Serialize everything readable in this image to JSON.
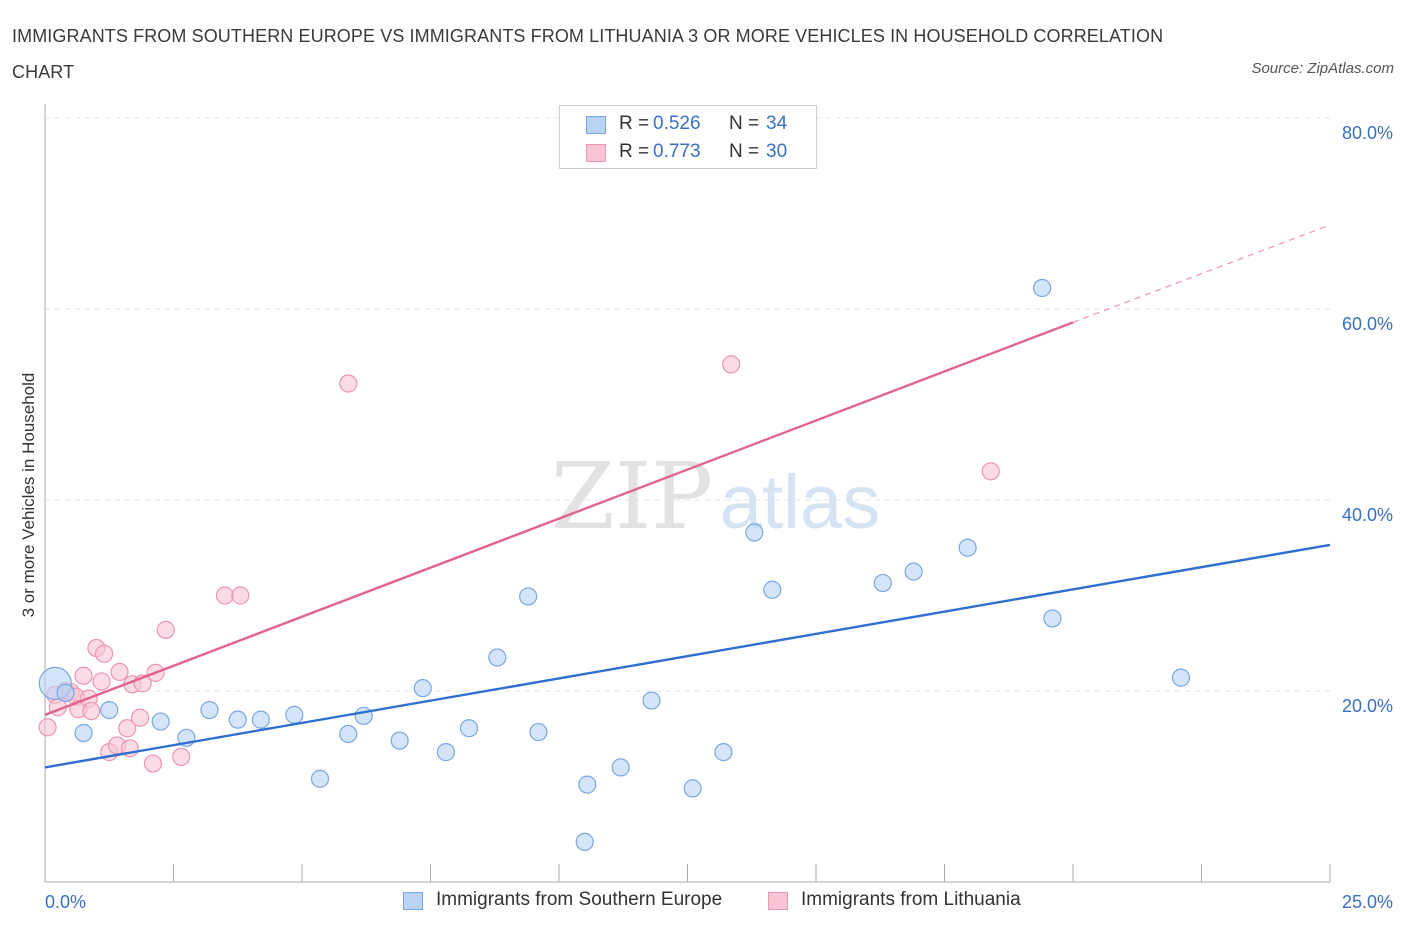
{
  "title": "IMMIGRANTS FROM SOUTHERN EUROPE VS IMMIGRANTS FROM LITHUANIA 3 OR MORE VEHICLES IN HOUSEHOLD CORRELATION CHART",
  "source": "Source: ZipAtlas.com",
  "watermark": {
    "zip": "ZIP",
    "atlas": "atlas"
  },
  "legend_top": [
    {
      "r_label": "R =",
      "r_value": "0.526",
      "n_label": "N =",
      "n_value": "34"
    },
    {
      "r_label": "R =",
      "r_value": "0.773",
      "n_label": "N =",
      "n_value": "30"
    }
  ],
  "legend_bottom": [
    "Immigrants from Southern Europe",
    "Immigrants from Lithuania"
  ],
  "colors": {
    "blue_fill": "#b9d3f5",
    "blue_stroke": "#7aa7e0",
    "blue_line": "#2f6fd0",
    "pink_fill": "#f9c4d4",
    "pink_stroke": "#ee95b0",
    "pink_line": "#e2648e",
    "tick_text": "#3a70c2",
    "grid": "#e3e3e3"
  },
  "chart_data": {
    "type": "scatter",
    "title": "IMMIGRANTS FROM SOUTHERN EUROPE VS IMMIGRANTS FROM LITHUANIA 3 OR MORE VEHICLES IN HOUSEHOLD CORRELATION CHART",
    "xlabel": "",
    "ylabel": "3 or more Vehicles in Household",
    "xlim": [
      0,
      25
    ],
    "ylim": [
      0,
      80
    ],
    "x_tick_labels": [
      "0.0%",
      "25.0%"
    ],
    "y_ticks": [
      20,
      40,
      60,
      80
    ],
    "y_tick_labels": [
      "20.0%",
      "40.0%",
      "60.0%",
      "80.0%"
    ],
    "grid": true,
    "legend_position": "top-center",
    "series": [
      {
        "name": "Immigrants from Southern Europe",
        "R": 0.526,
        "N": 34,
        "trend": {
          "x0": 0,
          "y0": 12.0,
          "x1": 25,
          "y1": 35.3
        },
        "points": [
          {
            "x": 0.2,
            "y": 20.8,
            "big": true
          },
          {
            "x": 0.75,
            "y": 15.6
          },
          {
            "x": 1.25,
            "y": 18.0
          },
          {
            "x": 2.25,
            "y": 16.8
          },
          {
            "x": 2.75,
            "y": 15.1
          },
          {
            "x": 3.2,
            "y": 18.0
          },
          {
            "x": 3.75,
            "y": 17.0
          },
          {
            "x": 4.2,
            "y": 17.0
          },
          {
            "x": 4.85,
            "y": 17.5
          },
          {
            "x": 5.35,
            "y": 10.8
          },
          {
            "x": 5.9,
            "y": 15.5
          },
          {
            "x": 6.2,
            "y": 17.4
          },
          {
            "x": 6.9,
            "y": 14.8
          },
          {
            "x": 7.35,
            "y": 20.3
          },
          {
            "x": 7.8,
            "y": 13.6
          },
          {
            "x": 8.25,
            "y": 16.1
          },
          {
            "x": 8.8,
            "y": 23.5
          },
          {
            "x": 9.4,
            "y": 29.9
          },
          {
            "x": 9.6,
            "y": 15.7
          },
          {
            "x": 10.55,
            "y": 10.2
          },
          {
            "x": 11.2,
            "y": 12.0
          },
          {
            "x": 10.5,
            "y": 4.2
          },
          {
            "x": 11.8,
            "y": 19.0
          },
          {
            "x": 12.6,
            "y": 9.8
          },
          {
            "x": 13.2,
            "y": 13.6
          },
          {
            "x": 13.8,
            "y": 36.6
          },
          {
            "x": 14.15,
            "y": 30.6
          },
          {
            "x": 16.3,
            "y": 31.3
          },
          {
            "x": 16.9,
            "y": 32.5
          },
          {
            "x": 17.95,
            "y": 35.0
          },
          {
            "x": 19.4,
            "y": 62.2
          },
          {
            "x": 19.6,
            "y": 27.6
          },
          {
            "x": 22.1,
            "y": 21.4
          },
          {
            "x": 0.4,
            "y": 19.8
          }
        ]
      },
      {
        "name": "Immigrants from Lithuania",
        "R": 0.773,
        "N": 30,
        "trend": {
          "x0": 0,
          "y0": 17.5,
          "x1": 20,
          "y1": 58.6,
          "dashed_to": {
            "x": 25,
            "y": 68.8
          }
        },
        "points": [
          {
            "x": 0.05,
            "y": 16.2
          },
          {
            "x": 0.2,
            "y": 19.6
          },
          {
            "x": 0.25,
            "y": 18.3
          },
          {
            "x": 0.4,
            "y": 20.0
          },
          {
            "x": 0.5,
            "y": 19.9
          },
          {
            "x": 0.6,
            "y": 19.4
          },
          {
            "x": 0.65,
            "y": 18.1
          },
          {
            "x": 0.75,
            "y": 21.6
          },
          {
            "x": 0.85,
            "y": 19.2
          },
          {
            "x": 0.9,
            "y": 17.9
          },
          {
            "x": 1.0,
            "y": 24.5
          },
          {
            "x": 1.1,
            "y": 21.0
          },
          {
            "x": 1.15,
            "y": 23.9
          },
          {
            "x": 1.25,
            "y": 13.6
          },
          {
            "x": 1.4,
            "y": 14.3
          },
          {
            "x": 1.45,
            "y": 22.0
          },
          {
            "x": 1.6,
            "y": 16.1
          },
          {
            "x": 1.65,
            "y": 14.0
          },
          {
            "x": 1.7,
            "y": 20.7
          },
          {
            "x": 1.85,
            "y": 17.2
          },
          {
            "x": 1.9,
            "y": 20.8
          },
          {
            "x": 2.1,
            "y": 12.4
          },
          {
            "x": 2.15,
            "y": 21.9
          },
          {
            "x": 2.35,
            "y": 26.4
          },
          {
            "x": 2.65,
            "y": 13.1
          },
          {
            "x": 3.5,
            "y": 30.0
          },
          {
            "x": 3.8,
            "y": 30.0
          },
          {
            "x": 5.9,
            "y": 52.2
          },
          {
            "x": 13.35,
            "y": 54.2
          },
          {
            "x": 18.4,
            "y": 43.0
          }
        ]
      }
    ]
  }
}
